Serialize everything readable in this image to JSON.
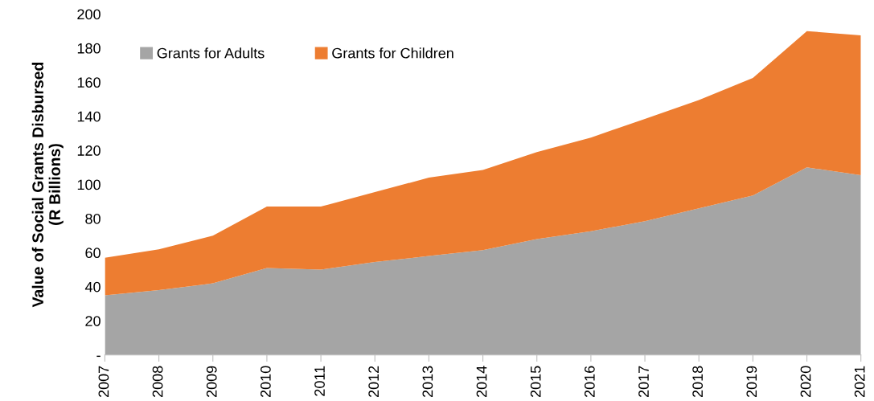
{
  "chart_data": {
    "type": "area",
    "stacked": true,
    "ylabel": "Value of Social Grants Disbursed\n(R Billions)",
    "categories": [
      "2007",
      "2008",
      "2009",
      "2010",
      "2011",
      "2012",
      "2013",
      "2014",
      "2015",
      "2016",
      "2017",
      "2018",
      "2019",
      "2020",
      "2021"
    ],
    "series": [
      {
        "name": "Grants for Adults",
        "color": "#a5a5a5",
        "values": [
          35,
          38,
          42,
          51,
          50,
          54.5,
          58,
          61.5,
          68,
          72.5,
          78.5,
          86,
          93.5,
          110,
          105.5
        ]
      },
      {
        "name": "Grants for Children",
        "color": "#ed7d31",
        "values": [
          22,
          24,
          28,
          36,
          37,
          41,
          46,
          47,
          51,
          55,
          60,
          63.5,
          69,
          80,
          82
        ]
      }
    ],
    "ylim": [
      0,
      200
    ],
    "yticks": [
      {
        "value": 0,
        "label": "-"
      },
      20,
      40,
      60,
      80,
      100,
      120,
      140,
      160,
      180,
      200
    ],
    "grid": false,
    "legend": "top left"
  }
}
